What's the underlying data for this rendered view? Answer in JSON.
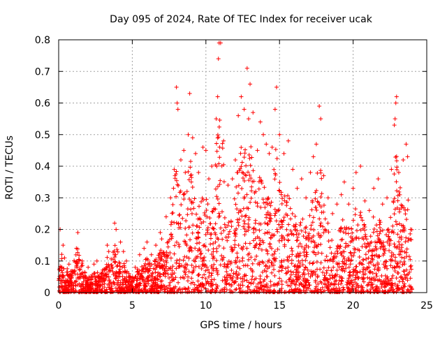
{
  "chart_data": {
    "type": "scatter",
    "title": "Day 095 of 2024, Rate Of TEC Index for receiver ucak",
    "xlabel": "GPS time / hours",
    "ylabel": "ROTI / TECUs",
    "xlim": [
      0,
      25
    ],
    "ylim": [
      0,
      0.8
    ],
    "xticks": [
      0,
      5,
      10,
      15,
      20,
      25
    ],
    "yticks": [
      0,
      0.1,
      0.2,
      0.3,
      0.4,
      0.5,
      0.6,
      0.7,
      0.8
    ],
    "grid": true,
    "marker": "+",
    "series": [
      {
        "color": "#ff0000",
        "points": [
          [
            0.1,
            0.2
          ],
          [
            0.3,
            0.15
          ],
          [
            0.4,
            0.11
          ],
          [
            0.7,
            0.09
          ],
          [
            1.2,
            0.14
          ],
          [
            1.3,
            0.19
          ],
          [
            1.6,
            0.1
          ],
          [
            2.0,
            0.08
          ],
          [
            2.4,
            0.09
          ],
          [
            2.6,
            0.1
          ],
          [
            2.9,
            0.06
          ],
          [
            3.3,
            0.15
          ],
          [
            3.4,
            0.13
          ],
          [
            3.8,
            0.22
          ],
          [
            3.9,
            0.2
          ],
          [
            4.2,
            0.16
          ],
          [
            4.4,
            0.13
          ],
          [
            4.6,
            0.1
          ],
          [
            5.2,
            0.08
          ],
          [
            5.5,
            0.12
          ],
          [
            5.8,
            0.14
          ],
          [
            6.0,
            0.16
          ],
          [
            6.3,
            0.12
          ],
          [
            6.6,
            0.15
          ],
          [
            6.9,
            0.19
          ],
          [
            7.0,
            0.17
          ],
          [
            7.3,
            0.24
          ],
          [
            7.6,
            0.3
          ],
          [
            7.8,
            0.33
          ],
          [
            7.9,
            0.37
          ],
          [
            8.0,
            0.65
          ],
          [
            8.05,
            0.6
          ],
          [
            8.1,
            0.58
          ],
          [
            8.3,
            0.42
          ],
          [
            8.5,
            0.45
          ],
          [
            8.6,
            0.38
          ],
          [
            8.8,
            0.5
          ],
          [
            8.9,
            0.63
          ],
          [
            9.1,
            0.49
          ],
          [
            9.3,
            0.44
          ],
          [
            9.5,
            0.38
          ],
          [
            9.8,
            0.46
          ],
          [
            10.0,
            0.45
          ],
          [
            10.2,
            0.36
          ],
          [
            10.4,
            0.4
          ],
          [
            10.7,
            0.55
          ],
          [
            10.8,
            0.62
          ],
          [
            10.85,
            0.74
          ],
          [
            10.9,
            0.79
          ],
          [
            11.0,
            0.79
          ],
          [
            11.2,
            0.48
          ],
          [
            11.5,
            0.34
          ],
          [
            11.8,
            0.36
          ],
          [
            12.0,
            0.42
          ],
          [
            12.2,
            0.56
          ],
          [
            12.4,
            0.62
          ],
          [
            12.6,
            0.58
          ],
          [
            12.8,
            0.71
          ],
          [
            12.9,
            0.55
          ],
          [
            13.0,
            0.66
          ],
          [
            13.2,
            0.57
          ],
          [
            13.5,
            0.45
          ],
          [
            13.7,
            0.54
          ],
          [
            13.9,
            0.5
          ],
          [
            14.1,
            0.47
          ],
          [
            14.3,
            0.44
          ],
          [
            14.5,
            0.46
          ],
          [
            14.7,
            0.58
          ],
          [
            14.8,
            0.65
          ],
          [
            15.0,
            0.5
          ],
          [
            15.3,
            0.44
          ],
          [
            15.6,
            0.48
          ],
          [
            15.9,
            0.39
          ],
          [
            16.2,
            0.33
          ],
          [
            16.5,
            0.36
          ],
          [
            16.8,
            0.3
          ],
          [
            17.1,
            0.38
          ],
          [
            17.3,
            0.43
          ],
          [
            17.5,
            0.47
          ],
          [
            17.7,
            0.59
          ],
          [
            17.8,
            0.55
          ],
          [
            18.0,
            0.37
          ],
          [
            18.3,
            0.3
          ],
          [
            18.6,
            0.25
          ],
          [
            18.9,
            0.28
          ],
          [
            19.2,
            0.31
          ],
          [
            19.4,
            0.35
          ],
          [
            19.7,
            0.28
          ],
          [
            20.0,
            0.33
          ],
          [
            20.2,
            0.38
          ],
          [
            20.5,
            0.4
          ],
          [
            20.8,
            0.29
          ],
          [
            21.1,
            0.26
          ],
          [
            21.4,
            0.33
          ],
          [
            21.7,
            0.36
          ],
          [
            22.0,
            0.28
          ],
          [
            22.3,
            0.3
          ],
          [
            22.6,
            0.39
          ],
          [
            22.8,
            0.53
          ],
          [
            22.85,
            0.55
          ],
          [
            22.9,
            0.6
          ],
          [
            22.95,
            0.62
          ],
          [
            23.1,
            0.38
          ],
          [
            23.4,
            0.42
          ],
          [
            23.6,
            0.47
          ],
          [
            23.7,
            0.43
          ],
          [
            23.9,
            0.2
          ]
        ]
      }
    ]
  }
}
